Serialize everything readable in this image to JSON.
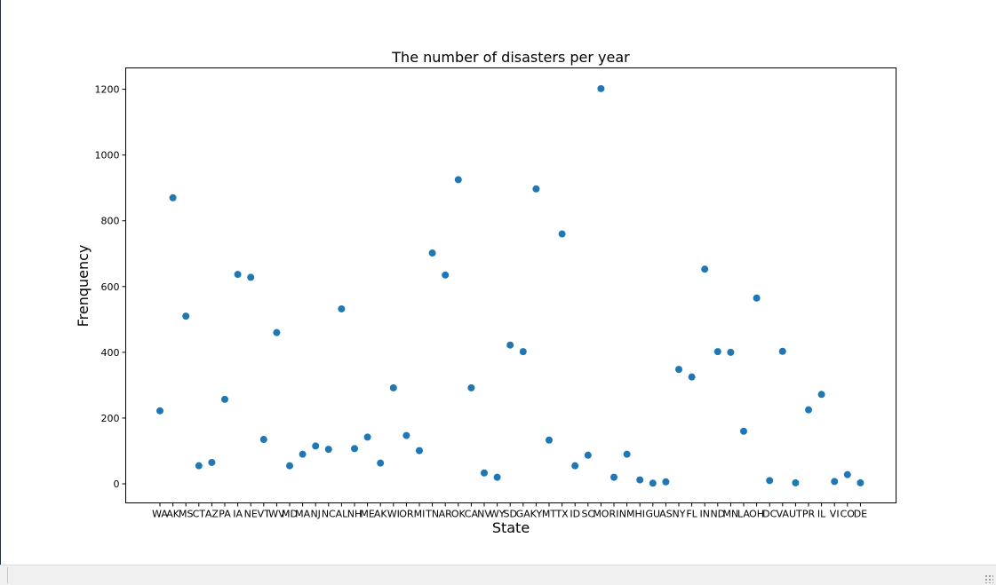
{
  "chart_data": {
    "type": "scatter",
    "title": "The number of disasters per year",
    "xlabel": "State",
    "ylabel": "Frenquency",
    "ylim": [
      -58,
      1265
    ],
    "yticks": [
      0,
      200,
      400,
      600,
      800,
      1000,
      1200
    ],
    "grid": false,
    "legend": false,
    "marker_color": "#1f77b4",
    "categories": [
      "WA",
      "AK",
      "MS",
      "CT",
      "AZ",
      "PA",
      "IA",
      "NE",
      "VT",
      "WV",
      "MD",
      "MA",
      "NJ",
      "NC",
      "AL",
      "NH",
      "ME",
      "AK",
      "WI",
      "OR",
      "MI",
      "TN",
      "AR",
      "OK",
      "CA",
      "NV",
      "WY",
      "SD",
      "GA",
      "KY",
      "MT",
      "TX",
      "ID",
      "SC",
      "MO",
      "RI",
      "NM",
      "HI",
      "GU",
      "AS",
      "NY",
      "FL",
      "IN",
      "ND",
      "MN",
      "LA",
      "OH",
      "DC",
      "VA",
      "UT",
      "PR",
      "IL",
      "VI",
      "CO",
      "DE"
    ],
    "values": [
      222,
      870,
      510,
      55,
      65,
      257,
      637,
      628,
      135,
      460,
      55,
      90,
      115,
      105,
      532,
      107,
      142,
      63,
      292,
      147,
      101,
      702,
      635,
      925,
      292,
      33,
      20,
      422,
      402,
      897,
      133,
      760,
      55,
      87,
      1202,
      20,
      90,
      12,
      2,
      6,
      348,
      325,
      653,
      402,
      400,
      160,
      565,
      10,
      403,
      3,
      225,
      272,
      7,
      28,
      3
    ]
  },
  "statusbar": {
    "grip_icon": "resize-grip-icon"
  }
}
